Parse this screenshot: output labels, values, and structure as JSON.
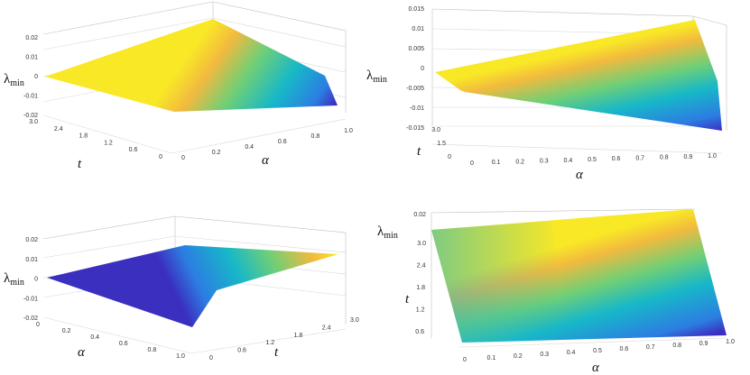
{
  "chart_data": [
    {
      "type": "surface3d",
      "z_label": "λmin",
      "x_label": "α",
      "y_label": "t",
      "z_ticks": [
        "0.02",
        "0.01",
        "0",
        "-0.01",
        "-0.02"
      ],
      "x_ticks": [
        "0",
        "0.2",
        "0.4",
        "0.6",
        "0.8",
        "1.0"
      ],
      "y_ticks": [
        "3.0",
        "2.4",
        "1.8",
        "1.2",
        "0.6",
        "0"
      ],
      "xlim": [
        0,
        1
      ],
      "ylim": [
        0,
        3
      ],
      "zlim": [
        -0.02,
        0.02
      ],
      "corners": {
        "a0_t0": 0,
        "a1_t0": -0.02,
        "a0_t3": 0,
        "a1_t3": 0.02
      }
    },
    {
      "type": "surface3d",
      "z_label": "λmin",
      "x_label": "α",
      "y_label": "t",
      "z_ticks": [
        "0.015",
        "0.01",
        "0.005",
        "0",
        "-0.005",
        "-0.01",
        "-0.015"
      ],
      "x_ticks": [
        "0",
        "0.1",
        "0.2",
        "0.3",
        "0.4",
        "0.5",
        "0.6",
        "0.7",
        "0.8",
        "0.9",
        "1.0"
      ],
      "y_ticks": [
        "3.0",
        "1.5",
        "0"
      ],
      "xlim": [
        0,
        1
      ],
      "ylim": [
        0,
        3
      ],
      "zlim": [
        -0.015,
        0.015
      ],
      "corners": {
        "a0_t0": 0,
        "a1_t0": -0.015,
        "a0_t3": 0,
        "a1_t3": 0.015
      }
    },
    {
      "type": "surface3d",
      "z_label": "λmin",
      "x_label": "α",
      "y_label": "t",
      "z_ticks": [
        "0.02",
        "0.01",
        "0",
        "-0.01",
        "-0.02"
      ],
      "x_ticks": [
        "0",
        "0.2",
        "0.4",
        "0.6",
        "0.8",
        "1.0"
      ],
      "y_ticks": [
        "0",
        "0.6",
        "1.2",
        "1.8",
        "2.4",
        "3.0"
      ],
      "xlim": [
        0,
        1
      ],
      "ylim": [
        0,
        3
      ],
      "zlim": [
        -0.02,
        0.02
      ],
      "corners": {
        "a0_t0": 0,
        "a1_t0": -0.02,
        "a0_t3": 0,
        "a1_t3": 0.02
      }
    },
    {
      "type": "surface3d",
      "z_label": "λmin",
      "x_label": "α",
      "y_label": "t",
      "z_ticks": [
        "0.02"
      ],
      "x_ticks": [
        "0",
        "0.1",
        "0.2",
        "0.3",
        "0.4",
        "0.5",
        "0.6",
        "0.7",
        "0.8",
        "0.9",
        "1.0"
      ],
      "y_ticks": [
        "3.0",
        "2.4",
        "1.8",
        "1.2",
        "0.6"
      ],
      "xlim": [
        0,
        1
      ],
      "ylim": [
        0,
        3
      ],
      "zlim": [
        -0.02,
        0.02
      ],
      "corners": {
        "a0_t0": 0,
        "a1_t0": -0.02,
        "a0_t3": 0,
        "a1_t3": 0.02
      }
    }
  ]
}
